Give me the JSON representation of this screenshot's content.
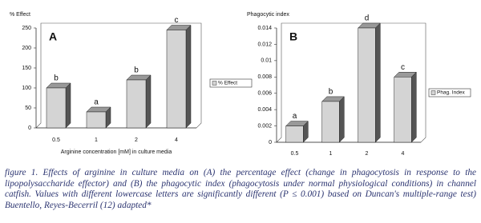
{
  "chart_data": [
    {
      "type": "bar",
      "panel": "A",
      "y_label": "% Effect",
      "x_label": "Arginine concentration [mM] in culture media",
      "categories": [
        "0.5",
        "1",
        "2",
        "4"
      ],
      "series": [
        {
          "name": "% Effect",
          "color": "#d4d4d4",
          "values": [
            100,
            40,
            120,
            245
          ]
        }
      ],
      "annotations": [
        "b",
        "a",
        "b",
        "c"
      ],
      "ylim": [
        0,
        250
      ],
      "yticks": [
        0,
        50,
        100,
        150,
        200,
        250
      ],
      "grid": false,
      "legend": "right"
    },
    {
      "type": "bar",
      "panel": "B",
      "y_label": "Phagocytic index",
      "categories": [
        "0.5",
        "1",
        "2",
        "4"
      ],
      "series": [
        {
          "name": "Phag. Index",
          "color": "#d4d4d4",
          "values": [
            0.002,
            0.005,
            0.014,
            0.008
          ]
        }
      ],
      "annotations": [
        "a",
        "b",
        "d",
        "c"
      ],
      "ylim": [
        0,
        0.014
      ],
      "yticks": [
        0,
        0.002,
        0.004,
        0.006,
        0.008,
        0.01,
        0.012,
        0.014
      ],
      "grid": false,
      "legend": "right"
    }
  ],
  "caption": "figure 1. Effects of arginine in culture media on (A) the percentage effect (change in phagocytosis in response to the lipopolysaccharide effector) and (B) the phagocytic index (phagocytosis under normal physiological conditions) in channel catfish. Values with different lowercase letters are significantly different (P ≤ 0.001) based on Duncan's multiple-range test) Buentello, Reyes-Becerril (12) adapted*"
}
